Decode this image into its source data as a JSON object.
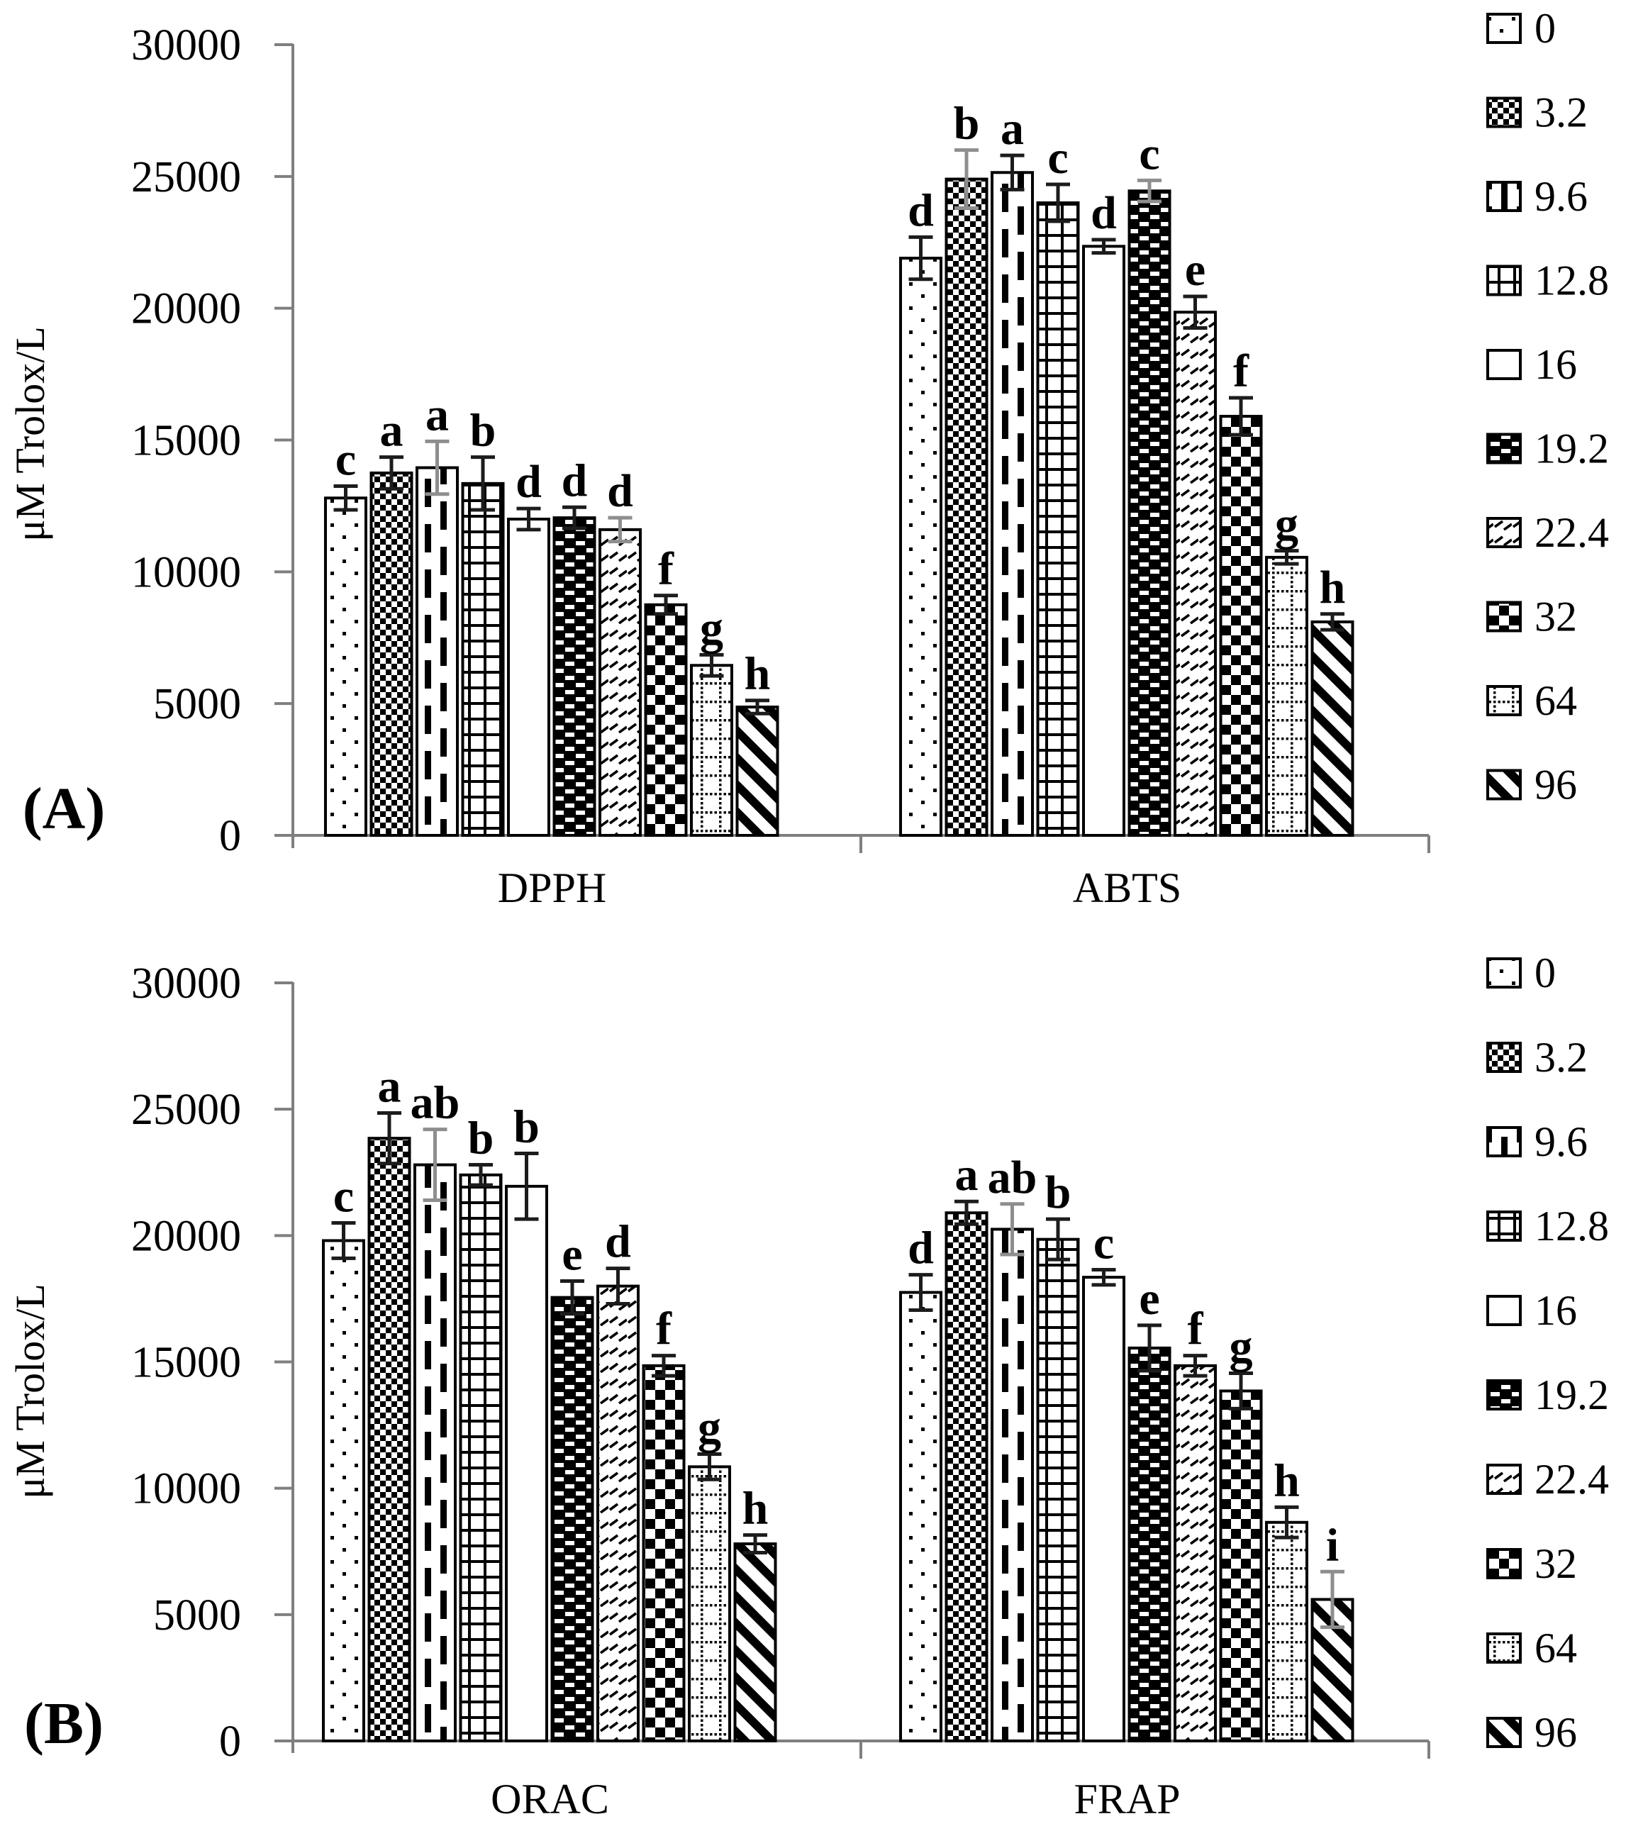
{
  "figure": {
    "y_axis_label": "μM Trolox/L",
    "panel_a_label": "(A)",
    "panel_b_label": "(B)",
    "axis_color": "#7f7f7f",
    "bar_outline_color": "#000000",
    "error_bar_color": "#1c1c1c",
    "error_bar_gray_color": "#8e8e8e"
  },
  "legend": {
    "labels": [
      "0",
      "3.2",
      "9.6",
      "12.8",
      "16",
      "19.2",
      "22.4",
      "32",
      "64",
      "96"
    ],
    "pattern_names": [
      "sparse-dots",
      "small-checkerboard",
      "vertical-dashes",
      "grid-lines",
      "plain-white",
      "dark-with-white-dashes",
      "diagonal-dashes",
      "large-checkerboard",
      "dotted-grid",
      "bold-diagonal-stripes"
    ]
  },
  "chart_data": [
    {
      "type": "bar",
      "panel": "A",
      "title": "",
      "xlabel": "",
      "ylabel": "μM Trolox/L",
      "ylim": [
        0,
        30000
      ],
      "yticks": [
        0,
        5000,
        10000,
        15000,
        20000,
        25000,
        30000
      ],
      "grid": false,
      "legend_position": "right",
      "series_labels": [
        "0",
        "3.2",
        "9.6",
        "12.8",
        "16",
        "19.2",
        "22.4",
        "32",
        "64",
        "96"
      ],
      "categories": [
        "DPPH",
        "ABTS"
      ],
      "groups": [
        {
          "category": "DPPH",
          "values": [
            12800,
            13750,
            13950,
            13350,
            12000,
            12050,
            11600,
            8750,
            6450,
            4870
          ],
          "errors": [
            450,
            600,
            1000,
            1000,
            400,
            400,
            450,
            350,
            400,
            250
          ],
          "letters": [
            "c",
            "a",
            "a",
            "b",
            "d",
            "d",
            "d",
            "f",
            "g",
            "h"
          ],
          "gray_error_indices": [
            2,
            6
          ]
        },
        {
          "category": "ABTS",
          "values": [
            21900,
            24900,
            25150,
            24000,
            22350,
            24450,
            19850,
            15900,
            10550,
            8100
          ],
          "errors": [
            800,
            1100,
            650,
            700,
            250,
            400,
            600,
            700,
            250,
            300
          ],
          "letters": [
            "d",
            "b",
            "a",
            "c",
            "d",
            "c",
            "e",
            "f",
            "g",
            "h"
          ],
          "gray_error_indices": [
            1,
            5
          ]
        }
      ]
    },
    {
      "type": "bar",
      "panel": "B",
      "title": "",
      "xlabel": "",
      "ylabel": "μM Trolox/L",
      "ylim": [
        0,
        30000
      ],
      "yticks": [
        0,
        5000,
        10000,
        15000,
        20000,
        25000,
        30000
      ],
      "grid": false,
      "legend_position": "right",
      "series_labels": [
        "0",
        "3.2",
        "9.6",
        "12.8",
        "16",
        "19.2",
        "22.4",
        "32",
        "64",
        "96"
      ],
      "categories": [
        "ORAC",
        "FRAP"
      ],
      "groups": [
        {
          "category": "ORAC",
          "values": [
            19800,
            23850,
            22800,
            22400,
            21950,
            17550,
            18000,
            14850,
            10850,
            7800
          ],
          "errors": [
            700,
            1000,
            1400,
            400,
            1300,
            650,
            700,
            400,
            500,
            350
          ],
          "letters": [
            "c",
            "a",
            "ab",
            "b",
            "b",
            "e",
            "d",
            "f",
            "g",
            "h"
          ],
          "gray_error_indices": [
            2
          ]
        },
        {
          "category": "FRAP",
          "values": [
            17750,
            20900,
            20250,
            19850,
            18350,
            15550,
            14850,
            13850,
            8650,
            5600
          ],
          "errors": [
            700,
            450,
            1000,
            800,
            300,
            900,
            400,
            700,
            600,
            1100
          ],
          "letters": [
            "d",
            "a",
            "ab",
            "b",
            "c",
            "e",
            "f",
            "g",
            "h",
            "i"
          ],
          "gray_error_indices": [
            2,
            9
          ]
        }
      ]
    }
  ]
}
